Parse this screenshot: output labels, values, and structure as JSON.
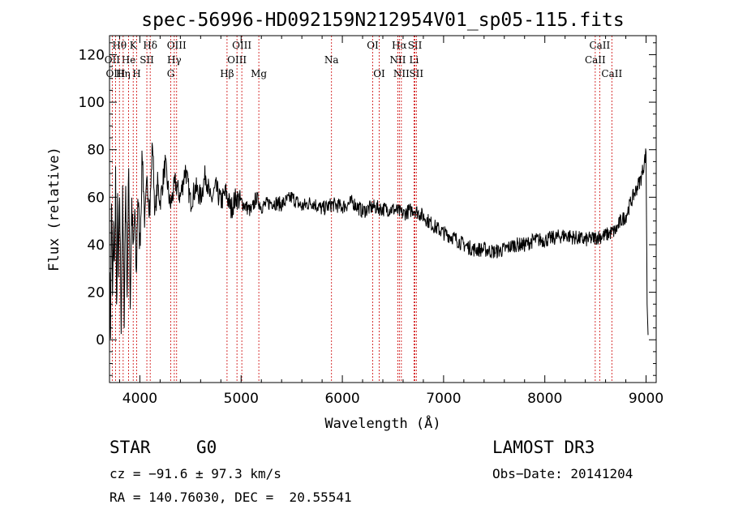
{
  "chart_data": {
    "type": "line",
    "title": "spec-56996-HD092159N212954V01_sp05-115.fits",
    "xlabel": "Wavelength (Å)",
    "ylabel": "Flux (relative)",
    "xlim": [
      3700,
      9100
    ],
    "ylim": [
      -18,
      128
    ],
    "xticks": [
      "4000",
      "5000",
      "6000",
      "7000",
      "8000",
      "9000"
    ],
    "yticks": [
      "0",
      "20",
      "40",
      "60",
      "80",
      "100",
      "120"
    ],
    "line_color": "#000000",
    "marker_color": "#cc0000",
    "series": [
      {
        "name": "flux",
        "x": [
          3700,
          3710,
          3720,
          3730,
          3740,
          3750,
          3760,
          3770,
          3780,
          3790,
          3800,
          3815,
          3830,
          3845,
          3860,
          3875,
          3890,
          3905,
          3920,
          3935,
          3950,
          3965,
          3980,
          4000,
          4025,
          4050,
          4075,
          4100,
          4125,
          4150,
          4175,
          4200,
          4250,
          4300,
          4350,
          4400,
          4450,
          4500,
          4550,
          4600,
          4650,
          4700,
          4750,
          4800,
          4850,
          4900,
          4950,
          5000,
          5050,
          5100,
          5150,
          5200,
          5300,
          5400,
          5500,
          5600,
          5700,
          5800,
          5900,
          6000,
          6100,
          6200,
          6300,
          6400,
          6500,
          6600,
          6700,
          6800,
          6900,
          7000,
          7100,
          7200,
          7300,
          7400,
          7500,
          7600,
          7700,
          7800,
          7900,
          8000,
          8100,
          8200,
          8300,
          8400,
          8500,
          8600,
          8700,
          8750,
          8800,
          8850,
          8900,
          8950,
          8980,
          9000,
          9010,
          9020
        ],
        "y": [
          30,
          5,
          60,
          18,
          45,
          30,
          70,
          10,
          55,
          25,
          62,
          8,
          58,
          12,
          66,
          20,
          72,
          15,
          58,
          35,
          55,
          25,
          62,
          40,
          78,
          48,
          68,
          55,
          84,
          52,
          66,
          58,
          74,
          56,
          66,
          60,
          72,
          58,
          64,
          60,
          70,
          58,
          64,
          58,
          62,
          55,
          60,
          58,
          56,
          54,
          60,
          56,
          58,
          57,
          60,
          56,
          58,
          55,
          57,
          56,
          58,
          54,
          56,
          55,
          55,
          53,
          55,
          52,
          48,
          45,
          43,
          40,
          38,
          38,
          37,
          38,
          40,
          40,
          42,
          42,
          43,
          44,
          43,
          42,
          43,
          44,
          46,
          50,
          52,
          58,
          63,
          68,
          74,
          79,
          15,
          2
        ]
      }
    ],
    "line_markers": [
      {
        "label": "Hθ",
        "x": 3798,
        "row": 0
      },
      {
        "label": "K",
        "x": 3934,
        "row": 0
      },
      {
        "label": "Hδ",
        "x": 4102,
        "row": 0
      },
      {
        "label": "OIII",
        "x": 4363,
        "row": 0
      },
      {
        "label": "OIII",
        "x": 5007,
        "row": 0
      },
      {
        "label": "OI",
        "x": 6300,
        "row": 0
      },
      {
        "label": "Hα",
        "x": 6563,
        "row": 0
      },
      {
        "label": "SII",
        "x": 6717,
        "row": 0
      },
      {
        "label": "CaII",
        "x": 8542,
        "row": 0
      },
      {
        "label": "OII",
        "x": 3727,
        "row": 1
      },
      {
        "label": "He",
        "x": 3889,
        "row": 1
      },
      {
        "label": "SII",
        "x": 4069,
        "row": 1
      },
      {
        "label": "Hγ",
        "x": 4340,
        "row": 1
      },
      {
        "label": "OIII",
        "x": 4959,
        "row": 1
      },
      {
        "label": "Na",
        "x": 5893,
        "row": 1
      },
      {
        "label": "NII",
        "x": 6548,
        "row": 1
      },
      {
        "label": "Li",
        "x": 6708,
        "row": 1
      },
      {
        "label": "CaII",
        "x": 8498,
        "row": 1
      },
      {
        "label": "OIII",
        "x": 3760,
        "row": 2
      },
      {
        "label": "Hη",
        "x": 3835,
        "row": 2
      },
      {
        "label": "H",
        "x": 3968,
        "row": 2
      },
      {
        "label": "G",
        "x": 4305,
        "row": 2
      },
      {
        "label": "Hβ",
        "x": 4861,
        "row": 2
      },
      {
        "label": "Mg",
        "x": 5175,
        "row": 2
      },
      {
        "label": "OI",
        "x": 6364,
        "row": 2
      },
      {
        "label": "NII",
        "x": 6583,
        "row": 2
      },
      {
        "label": "SII",
        "x": 6731,
        "row": 2
      },
      {
        "label": "CaII",
        "x": 8662,
        "row": 2
      }
    ]
  },
  "info": {
    "object_class": "STAR",
    "subclass": "G0",
    "survey": "LAMOST DR3",
    "redshift": "cz = −91.6 ± 97.3 km/s",
    "obs_date": "Obs−Date: 20141204",
    "coords": "RA = 140.76030, DEC =  20.55541"
  }
}
